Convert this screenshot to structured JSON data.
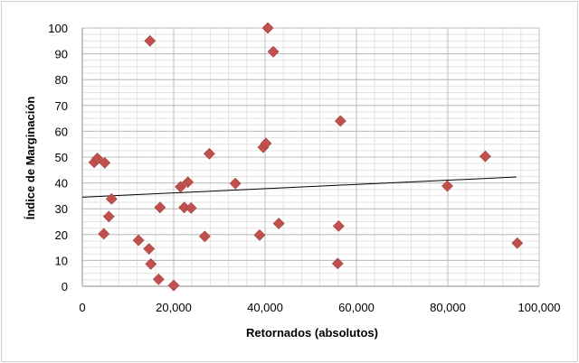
{
  "chart_data": {
    "type": "scatter",
    "xlabel": "Retornados (absolutos)",
    "ylabel": "Índice de Marginación",
    "xlim": [
      0,
      100000
    ],
    "ylim": [
      0,
      100
    ],
    "x_ticks": [
      "0",
      "20,000",
      "40,000",
      "60,000",
      "80,000",
      "100,000"
    ],
    "y_ticks": [
      "0",
      "10",
      "20",
      "30",
      "40",
      "50",
      "60",
      "70",
      "80",
      "90",
      "100"
    ],
    "grid": true,
    "marker_color": "#c0504d",
    "trendline_color": "#000000",
    "trendline": {
      "x": [
        0,
        95000
      ],
      "y": [
        34.5,
        42.3
      ]
    },
    "series": [
      {
        "points": [
          {
            "x": 2600,
            "y": 48
          },
          {
            "x": 3300,
            "y": 49.5
          },
          {
            "x": 4700,
            "y": 20.3
          },
          {
            "x": 4900,
            "y": 47.8
          },
          {
            "x": 5800,
            "y": 27
          },
          {
            "x": 6400,
            "y": 33.8
          },
          {
            "x": 12300,
            "y": 17.8
          },
          {
            "x": 14600,
            "y": 14.5
          },
          {
            "x": 14800,
            "y": 95
          },
          {
            "x": 15000,
            "y": 8.6
          },
          {
            "x": 16700,
            "y": 2.7
          },
          {
            "x": 17000,
            "y": 30.5
          },
          {
            "x": 20000,
            "y": 0.3
          },
          {
            "x": 21500,
            "y": 38.5
          },
          {
            "x": 22300,
            "y": 30.5
          },
          {
            "x": 23100,
            "y": 40.3
          },
          {
            "x": 23800,
            "y": 30.3
          },
          {
            "x": 26800,
            "y": 19.3
          },
          {
            "x": 27800,
            "y": 51.3
          },
          {
            "x": 33500,
            "y": 39.8
          },
          {
            "x": 38800,
            "y": 19.8
          },
          {
            "x": 39600,
            "y": 53.8
          },
          {
            "x": 40200,
            "y": 55.3
          },
          {
            "x": 40600,
            "y": 100
          },
          {
            "x": 41800,
            "y": 90.8
          },
          {
            "x": 43000,
            "y": 24.3
          },
          {
            "x": 55900,
            "y": 8.8
          },
          {
            "x": 56100,
            "y": 23.3
          },
          {
            "x": 56500,
            "y": 64
          },
          {
            "x": 79900,
            "y": 38.8
          },
          {
            "x": 88200,
            "y": 50.3
          },
          {
            "x": 95200,
            "y": 16.7
          }
        ]
      }
    ]
  }
}
